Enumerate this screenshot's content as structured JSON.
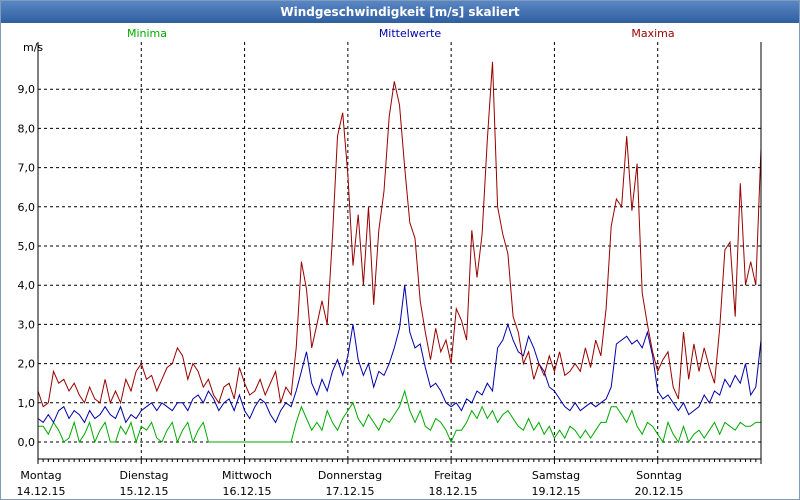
{
  "window": {
    "title": "Windgeschwindigkeit [m/s] skaliert"
  },
  "colors": {
    "minima": "#00aa00",
    "mittel": "#0000aa",
    "maxima": "#990000",
    "grid": "#000000"
  },
  "chart_data": {
    "type": "line",
    "title": "Windgeschwindigkeit [m/s] skaliert",
    "ylabel": "m/s",
    "ylim": [
      0,
      10
    ],
    "xlim": [
      0,
      7
    ],
    "yticks": [
      {
        "value": 0,
        "label": "0,0"
      },
      {
        "value": 1,
        "label": "1,0"
      },
      {
        "value": 2,
        "label": "2,0"
      },
      {
        "value": 3,
        "label": "3,0"
      },
      {
        "value": 4,
        "label": "4,0"
      },
      {
        "value": 5,
        "label": "5,0"
      },
      {
        "value": 6,
        "label": "6,0"
      },
      {
        "value": 7,
        "label": "7,0"
      },
      {
        "value": 8,
        "label": "8,0"
      },
      {
        "value": 9,
        "label": "9,0"
      }
    ],
    "categories": [
      {
        "day": "Montag",
        "date": "14.12.15"
      },
      {
        "day": "Dienstag",
        "date": "15.12.15"
      },
      {
        "day": "Mittwoch",
        "date": "16.12.15"
      },
      {
        "day": "Donnerstag",
        "date": "17.12.15"
      },
      {
        "day": "Freitag",
        "date": "18.12.15"
      },
      {
        "day": "Samstag",
        "date": "19.12.15"
      },
      {
        "day": "Sonntag",
        "date": "20.12.15"
      }
    ],
    "series": [
      {
        "name": "Minima",
        "color": "#00aa00",
        "x": [
          0.0,
          0.05,
          0.1,
          0.15,
          0.2,
          0.25,
          0.3,
          0.35,
          0.4,
          0.45,
          0.5,
          0.55,
          0.6,
          0.65,
          0.7,
          0.75,
          0.8,
          0.85,
          0.9,
          0.95,
          1.0,
          1.05,
          1.1,
          1.15,
          1.2,
          1.25,
          1.3,
          1.35,
          1.4,
          1.45,
          1.5,
          1.55,
          1.6,
          1.65,
          1.7,
          1.75,
          1.8,
          1.85,
          1.9,
          1.95,
          2.0,
          2.05,
          2.1,
          2.15,
          2.2,
          2.25,
          2.3,
          2.35,
          2.4,
          2.45,
          2.5,
          2.55,
          2.6,
          2.65,
          2.7,
          2.75,
          2.8,
          2.85,
          2.9,
          2.95,
          3.0,
          3.05,
          3.1,
          3.15,
          3.2,
          3.25,
          3.3,
          3.35,
          3.4,
          3.45,
          3.5,
          3.55,
          3.6,
          3.65,
          3.7,
          3.75,
          3.8,
          3.85,
          3.9,
          3.95,
          4.0,
          4.05,
          4.1,
          4.15,
          4.2,
          4.25,
          4.3,
          4.35,
          4.4,
          4.45,
          4.5,
          4.55,
          4.6,
          4.65,
          4.7,
          4.75,
          4.8,
          4.85,
          4.9,
          4.95,
          5.0,
          5.05,
          5.1,
          5.15,
          5.2,
          5.25,
          5.3,
          5.35,
          5.4,
          5.45,
          5.5,
          5.55,
          5.6,
          5.65,
          5.7,
          5.75,
          5.8,
          5.85,
          5.9,
          5.95,
          6.0,
          6.05,
          6.1,
          6.15,
          6.2,
          6.25,
          6.3,
          6.35,
          6.4,
          6.45,
          6.5,
          6.55,
          6.6,
          6.65,
          6.7,
          6.75,
          6.8,
          6.85,
          6.9,
          6.95,
          7.0
        ],
        "y": [
          0.4,
          0.4,
          0.2,
          0.5,
          0.3,
          0.0,
          0.1,
          0.5,
          0.0,
          0.2,
          0.5,
          0.0,
          0.3,
          0.5,
          0.0,
          0.0,
          0.4,
          0.2,
          0.5,
          0.0,
          0.4,
          0.3,
          0.5,
          0.1,
          0.0,
          0.3,
          0.5,
          0.0,
          0.3,
          0.5,
          0.0,
          0.3,
          0.5,
          0.0,
          0.0,
          0.0,
          0.0,
          0.0,
          0.0,
          0.0,
          0.0,
          0.0,
          0.0,
          0.0,
          0.0,
          0.0,
          0.0,
          0.0,
          0.0,
          0.0,
          0.5,
          0.9,
          0.6,
          0.3,
          0.5,
          0.3,
          0.8,
          0.5,
          0.3,
          0.6,
          0.8,
          1.0,
          0.6,
          0.4,
          0.7,
          0.5,
          0.3,
          0.6,
          0.5,
          0.7,
          0.9,
          1.3,
          0.8,
          0.5,
          0.8,
          0.4,
          0.3,
          0.6,
          0.5,
          0.3,
          0.0,
          0.3,
          0.3,
          0.5,
          0.8,
          0.6,
          0.9,
          0.6,
          0.8,
          0.5,
          0.7,
          0.8,
          0.6,
          0.4,
          0.3,
          0.6,
          0.3,
          0.5,
          0.2,
          0.4,
          0.1,
          0.3,
          0.1,
          0.4,
          0.3,
          0.1,
          0.3,
          0.1,
          0.3,
          0.5,
          0.5,
          0.9,
          0.9,
          0.7,
          0.5,
          0.8,
          0.4,
          0.2,
          0.5,
          0.4,
          0.2,
          0.0,
          0.5,
          0.2,
          0.0,
          0.4,
          0.0,
          0.2,
          0.3,
          0.1,
          0.3,
          0.5,
          0.2,
          0.5,
          0.4,
          0.3,
          0.5,
          0.4,
          0.4,
          0.5,
          0.5
        ]
      },
      {
        "name": "Mittelwerte",
        "color": "#0000aa",
        "x": [
          0.0,
          0.05,
          0.1,
          0.15,
          0.2,
          0.25,
          0.3,
          0.35,
          0.4,
          0.45,
          0.5,
          0.55,
          0.6,
          0.65,
          0.7,
          0.75,
          0.8,
          0.85,
          0.9,
          0.95,
          1.0,
          1.05,
          1.1,
          1.15,
          1.2,
          1.25,
          1.3,
          1.35,
          1.4,
          1.45,
          1.5,
          1.55,
          1.6,
          1.65,
          1.7,
          1.75,
          1.8,
          1.85,
          1.9,
          1.95,
          2.0,
          2.05,
          2.1,
          2.15,
          2.2,
          2.25,
          2.3,
          2.35,
          2.4,
          2.45,
          2.5,
          2.55,
          2.6,
          2.65,
          2.7,
          2.75,
          2.8,
          2.85,
          2.9,
          2.95,
          3.0,
          3.05,
          3.1,
          3.15,
          3.2,
          3.25,
          3.3,
          3.35,
          3.4,
          3.45,
          3.5,
          3.55,
          3.6,
          3.65,
          3.7,
          3.75,
          3.8,
          3.85,
          3.9,
          3.95,
          4.0,
          4.05,
          4.1,
          4.15,
          4.2,
          4.25,
          4.3,
          4.35,
          4.4,
          4.45,
          4.5,
          4.55,
          4.6,
          4.65,
          4.7,
          4.75,
          4.8,
          4.85,
          4.9,
          4.95,
          5.0,
          5.05,
          5.1,
          5.15,
          5.2,
          5.25,
          5.3,
          5.35,
          5.4,
          5.45,
          5.5,
          5.55,
          5.6,
          5.65,
          5.7,
          5.75,
          5.8,
          5.85,
          5.9,
          5.95,
          6.0,
          6.05,
          6.1,
          6.15,
          6.2,
          6.25,
          6.3,
          6.35,
          6.4,
          6.45,
          6.5,
          6.55,
          6.6,
          6.65,
          6.7,
          6.75,
          6.8,
          6.85,
          6.9,
          6.95,
          7.0
        ],
        "y": [
          0.6,
          0.5,
          0.7,
          0.5,
          0.8,
          0.9,
          0.6,
          0.8,
          0.7,
          0.5,
          0.8,
          0.6,
          0.7,
          0.9,
          0.7,
          0.6,
          0.9,
          0.5,
          0.7,
          0.6,
          0.8,
          0.9,
          1.0,
          0.8,
          1.0,
          0.9,
          0.8,
          1.0,
          1.0,
          0.8,
          1.1,
          1.2,
          1.0,
          1.3,
          1.1,
          0.8,
          1.0,
          1.1,
          0.8,
          1.2,
          0.8,
          0.6,
          0.9,
          1.1,
          1.0,
          0.7,
          0.5,
          0.8,
          1.0,
          0.9,
          1.3,
          1.8,
          2.3,
          1.5,
          1.2,
          1.6,
          1.3,
          1.8,
          2.1,
          1.7,
          2.2,
          3.0,
          2.1,
          1.7,
          2.0,
          1.4,
          1.8,
          1.7,
          2.0,
          2.4,
          2.9,
          4.0,
          2.8,
          2.4,
          2.5,
          1.9,
          1.4,
          1.5,
          1.3,
          1.0,
          0.9,
          1.0,
          0.8,
          1.1,
          1.0,
          1.3,
          1.2,
          1.5,
          1.3,
          2.4,
          2.6,
          3.0,
          2.6,
          2.3,
          2.2,
          2.7,
          2.4,
          2.0,
          1.8,
          1.4,
          1.3,
          1.1,
          0.9,
          0.8,
          1.0,
          0.8,
          0.9,
          1.0,
          0.9,
          1.0,
          1.1,
          1.4,
          2.5,
          2.6,
          2.7,
          2.5,
          2.6,
          2.4,
          2.8,
          2.2,
          1.3,
          1.1,
          1.2,
          1.0,
          0.8,
          1.0,
          0.7,
          0.8,
          0.9,
          1.2,
          1.0,
          1.3,
          1.2,
          1.6,
          1.4,
          1.7,
          1.5,
          2.0,
          1.2,
          1.4,
          2.6
        ]
      },
      {
        "name": "Maxima",
        "color": "#990000",
        "x": [
          0.0,
          0.05,
          0.1,
          0.15,
          0.2,
          0.25,
          0.3,
          0.35,
          0.4,
          0.45,
          0.5,
          0.55,
          0.6,
          0.65,
          0.7,
          0.75,
          0.8,
          0.85,
          0.9,
          0.95,
          1.0,
          1.05,
          1.1,
          1.15,
          1.2,
          1.25,
          1.3,
          1.35,
          1.4,
          1.45,
          1.5,
          1.55,
          1.6,
          1.65,
          1.7,
          1.75,
          1.8,
          1.85,
          1.9,
          1.95,
          2.0,
          2.05,
          2.1,
          2.15,
          2.2,
          2.25,
          2.3,
          2.35,
          2.4,
          2.45,
          2.5,
          2.55,
          2.6,
          2.65,
          2.7,
          2.75,
          2.8,
          2.85,
          2.9,
          2.95,
          3.0,
          3.05,
          3.1,
          3.15,
          3.2,
          3.25,
          3.3,
          3.35,
          3.4,
          3.45,
          3.5,
          3.55,
          3.6,
          3.65,
          3.7,
          3.75,
          3.8,
          3.85,
          3.9,
          3.95,
          4.0,
          4.05,
          4.1,
          4.15,
          4.2,
          4.25,
          4.3,
          4.35,
          4.4,
          4.45,
          4.5,
          4.55,
          4.6,
          4.65,
          4.7,
          4.75,
          4.8,
          4.85,
          4.9,
          4.95,
          5.0,
          5.05,
          5.1,
          5.15,
          5.2,
          5.25,
          5.3,
          5.35,
          5.4,
          5.45,
          5.5,
          5.55,
          5.6,
          5.65,
          5.7,
          5.75,
          5.8,
          5.85,
          5.9,
          5.95,
          6.0,
          6.05,
          6.1,
          6.15,
          6.2,
          6.25,
          6.3,
          6.35,
          6.4,
          6.45,
          6.5,
          6.55,
          6.6,
          6.65,
          6.7,
          6.75,
          6.8,
          6.85,
          6.9,
          6.95,
          7.0
        ],
        "y": [
          1.3,
          0.9,
          1.0,
          1.8,
          1.5,
          1.6,
          1.3,
          1.5,
          1.2,
          1.0,
          1.4,
          1.1,
          1.0,
          1.6,
          1.0,
          1.3,
          1.0,
          1.6,
          1.3,
          1.8,
          2.0,
          1.6,
          1.7,
          1.3,
          1.6,
          1.9,
          2.0,
          2.4,
          2.2,
          1.6,
          2.0,
          1.8,
          1.4,
          1.6,
          1.2,
          1.0,
          1.4,
          1.5,
          1.1,
          1.9,
          1.5,
          1.2,
          1.3,
          1.6,
          1.2,
          1.5,
          1.8,
          1.0,
          1.4,
          1.2,
          2.4,
          4.6,
          3.9,
          2.4,
          3.0,
          3.6,
          3.0,
          5.2,
          7.8,
          8.4,
          6.8,
          4.5,
          5.8,
          4.0,
          6.0,
          3.5,
          5.4,
          6.4,
          8.3,
          9.2,
          8.6,
          7.0,
          5.6,
          5.2,
          3.6,
          2.8,
          2.1,
          2.9,
          2.3,
          2.6,
          2.0,
          3.4,
          3.1,
          2.6,
          5.4,
          4.2,
          5.3,
          7.7,
          9.7,
          6.0,
          5.3,
          4.8,
          3.2,
          2.8,
          2.0,
          2.3,
          1.6,
          2.0,
          1.7,
          2.2,
          1.8,
          2.3,
          1.7,
          1.8,
          2.0,
          1.8,
          2.4,
          1.9,
          2.6,
          2.2,
          3.4,
          5.5,
          6.2,
          6.0,
          7.8,
          5.9,
          7.1,
          3.8,
          3.0,
          2.3,
          1.8,
          2.1,
          2.3,
          1.4,
          1.1,
          2.8,
          1.6,
          2.5,
          1.8,
          2.4,
          1.9,
          1.5,
          2.9,
          4.9,
          5.1,
          3.2,
          6.6,
          4.0,
          4.6,
          4.0,
          7.5
        ]
      }
    ]
  }
}
